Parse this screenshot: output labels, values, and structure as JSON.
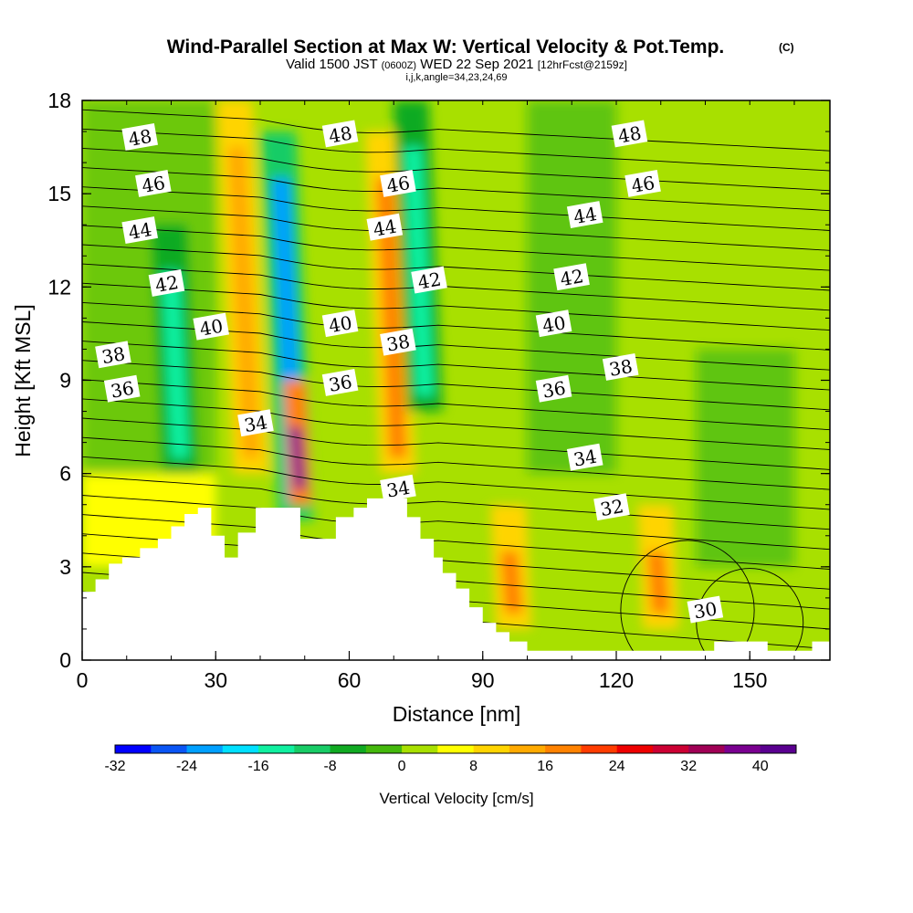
{
  "chart_data": {
    "type": "heatmap",
    "title": "Wind-Parallel Section at Max W: Vertical Velocity & Pot.Temp.",
    "title_mark": "(C)",
    "subtitle_parts": [
      "Valid 1500 JST",
      "(0600Z)",
      "WED 22 Sep 2021",
      "[12hrFcst@2159z]"
    ],
    "subtitle2": "i,j,k,angle=34,23,24,69",
    "xlabel": "Distance [nm]",
    "ylabel": "Height [Kft MSL]",
    "xlim": [
      0,
      168
    ],
    "ylim": [
      0,
      18
    ],
    "xticks": [
      0,
      30,
      60,
      90,
      120,
      150
    ],
    "yticks": [
      0,
      3,
      6,
      9,
      12,
      15,
      18
    ],
    "colorbar": {
      "label": "Vertical Velocity [cm/s]",
      "tick_values": [
        -32,
        -24,
        -16,
        -8,
        0,
        8,
        16,
        24,
        32,
        40
      ],
      "bin_edges": [
        -32,
        -28,
        -24,
        -20,
        -16,
        -12,
        -8,
        -4,
        0,
        4,
        8,
        12,
        16,
        20,
        24,
        28,
        32,
        36,
        40,
        44
      ],
      "colors": [
        "#0000ff",
        "#0a55f5",
        "#00a0ff",
        "#00e0ff",
        "#10f0a0",
        "#18cc66",
        "#10aa22",
        "#44b80c",
        "#a8e000",
        "#ffff00",
        "#ffd400",
        "#ffaa00",
        "#ff8200",
        "#ff3c00",
        "#ee0000",
        "#cc0033",
        "#a00055",
        "#7a0090",
        "#5a0090"
      ]
    },
    "vertical_velocity_features": [
      {
        "x": 48,
        "z_range": [
          4.5,
          17
        ],
        "w": -24,
        "kind": "downdraft"
      },
      {
        "x": 38,
        "z_range": [
          6,
          18
        ],
        "w": 12,
        "kind": "updraft"
      },
      {
        "x": 49,
        "z_range": [
          5,
          9
        ],
        "w": 36,
        "kind": "updraft"
      },
      {
        "x": 71,
        "z_range": [
          6,
          17
        ],
        "w": 16,
        "kind": "updraft"
      },
      {
        "x": 77,
        "z_range": [
          8,
          18
        ],
        "w": -14,
        "kind": "downdraft"
      },
      {
        "x": 97,
        "z_range": [
          1,
          5
        ],
        "w": 16,
        "kind": "updraft"
      },
      {
        "x": 130,
        "z_range": [
          1,
          5
        ],
        "w": 16,
        "kind": "updraft"
      },
      {
        "x": 22,
        "z_range": [
          6,
          14
        ],
        "w": -14,
        "kind": "downdraft"
      }
    ],
    "potential_temperature_labels": [
      {
        "value": "48",
        "x": 13,
        "z": 16.8
      },
      {
        "value": "46",
        "x": 16,
        "z": 15.3
      },
      {
        "value": "44",
        "x": 13,
        "z": 13.8
      },
      {
        "value": "42",
        "x": 19,
        "z": 12.1
      },
      {
        "value": "40",
        "x": 29,
        "z": 10.7
      },
      {
        "value": "38",
        "x": 7,
        "z": 9.8
      },
      {
        "value": "36",
        "x": 9,
        "z": 8.7
      },
      {
        "value": "34",
        "x": 39,
        "z": 7.6
      },
      {
        "value": "48",
        "x": 58,
        "z": 16.9
      },
      {
        "value": "46",
        "x": 71,
        "z": 15.3
      },
      {
        "value": "44",
        "x": 68,
        "z": 13.9
      },
      {
        "value": "42",
        "x": 78,
        "z": 12.2
      },
      {
        "value": "40",
        "x": 58,
        "z": 10.8
      },
      {
        "value": "38",
        "x": 71,
        "z": 10.2
      },
      {
        "value": "36",
        "x": 58,
        "z": 8.9
      },
      {
        "value": "34",
        "x": 71,
        "z": 5.5
      },
      {
        "value": "48",
        "x": 123,
        "z": 16.9
      },
      {
        "value": "46",
        "x": 126,
        "z": 15.3
      },
      {
        "value": "44",
        "x": 113,
        "z": 14.3
      },
      {
        "value": "42",
        "x": 110,
        "z": 12.3
      },
      {
        "value": "40",
        "x": 106,
        "z": 10.8
      },
      {
        "value": "38",
        "x": 121,
        "z": 9.4
      },
      {
        "value": "36",
        "x": 106,
        "z": 8.7
      },
      {
        "value": "34",
        "x": 113,
        "z": 6.5
      },
      {
        "value": "32",
        "x": 119,
        "z": 4.9
      },
      {
        "value": "30",
        "x": 140,
        "z": 1.6
      }
    ],
    "terrain_height_kft": [
      [
        0,
        2.2
      ],
      [
        3,
        2.6
      ],
      [
        6,
        3.1
      ],
      [
        9,
        3.3
      ],
      [
        13,
        3.6
      ],
      [
        17,
        3.9
      ],
      [
        20,
        4.3
      ],
      [
        23,
        4.7
      ],
      [
        26,
        4.9
      ],
      [
        29,
        4.0
      ],
      [
        32,
        3.3
      ],
      [
        35,
        4.1
      ],
      [
        39,
        4.9
      ],
      [
        44,
        4.9
      ],
      [
        47,
        4.9
      ],
      [
        49,
        3.9
      ],
      [
        55,
        3.9
      ],
      [
        57,
        4.6
      ],
      [
        61,
        4.9
      ],
      [
        64,
        5.2
      ],
      [
        70,
        5.2
      ],
      [
        73,
        4.6
      ],
      [
        76,
        3.9
      ],
      [
        79,
        3.3
      ],
      [
        81,
        2.8
      ],
      [
        84,
        2.3
      ],
      [
        87,
        1.7
      ],
      [
        90,
        1.2
      ],
      [
        93,
        0.9
      ],
      [
        96,
        0.6
      ],
      [
        100,
        0.3
      ],
      [
        138,
        0.3
      ],
      [
        142,
        0.6
      ],
      [
        150,
        0.6
      ],
      [
        154,
        0.3
      ],
      [
        160,
        0.3
      ],
      [
        164,
        0.6
      ],
      [
        168,
        0.7
      ]
    ],
    "grid": false,
    "legend": "colorbar-bottom"
  }
}
